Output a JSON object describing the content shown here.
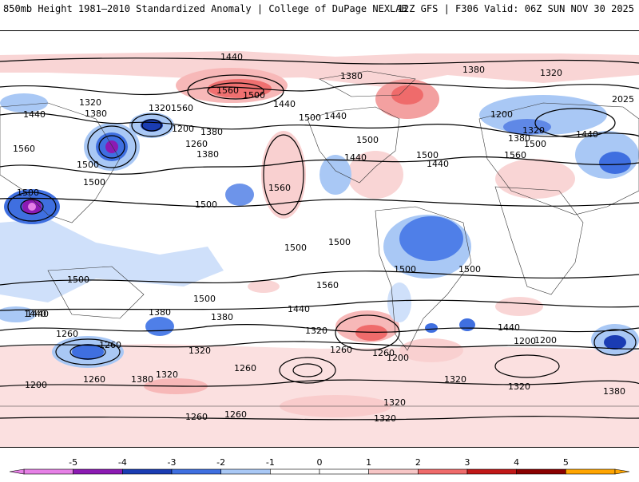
{
  "header": {
    "title_left": "850mb Height 1981–2010 Standardized Anomaly | College of DuPage NEXLAB",
    "title_right": "12Z GFS | F306 Valid: 06Z SUN NOV 30 2025"
  },
  "map": {
    "contour_labels": [
      {
        "text": "1440",
        "id": "c1"
      },
      {
        "text": "1560",
        "id": "c2"
      },
      {
        "text": "1500",
        "id": "c3"
      },
      {
        "text": "1440",
        "id": "c4"
      },
      {
        "text": "1380",
        "id": "c5"
      },
      {
        "text": "1380",
        "id": "c6"
      },
      {
        "text": "1320",
        "id": "c7"
      },
      {
        "text": "1320",
        "id": "c8"
      },
      {
        "text": "1440",
        "id": "c9"
      },
      {
        "text": "1380",
        "id": "c10"
      },
      {
        "text": "1560",
        "id": "c11"
      },
      {
        "text": "1500",
        "id": "c12"
      },
      {
        "text": "1320",
        "id": "c13"
      },
      {
        "text": "1380",
        "id": "c14"
      },
      {
        "text": "1200",
        "id": "c15"
      },
      {
        "text": "1260",
        "id": "c16"
      },
      {
        "text": "1380",
        "id": "c17"
      },
      {
        "text": "1440",
        "id": "c18"
      },
      {
        "text": "1500",
        "id": "c19"
      },
      {
        "text": "1560",
        "id": "c20"
      },
      {
        "text": "1500",
        "id": "c21"
      },
      {
        "text": "1440",
        "id": "c22"
      },
      {
        "text": "1440",
        "id": "c23"
      },
      {
        "text": "1500",
        "id": "c24"
      },
      {
        "text": "1200",
        "id": "c25"
      },
      {
        "text": "1320",
        "id": "c26"
      },
      {
        "text": "1380",
        "id": "c27"
      },
      {
        "text": "1500",
        "id": "c28"
      },
      {
        "text": "1440",
        "id": "c29"
      },
      {
        "text": "2025",
        "id": "c30"
      },
      {
        "text": "1560",
        "id": "c31"
      },
      {
        "text": "1500",
        "id": "c32"
      },
      {
        "text": "1500",
        "id": "c33"
      },
      {
        "text": "1560",
        "id": "c34"
      },
      {
        "text": "1500",
        "id": "c35"
      },
      {
        "text": "1500",
        "id": "c36"
      },
      {
        "text": "1500",
        "id": "c37"
      },
      {
        "text": "1500",
        "id": "c38"
      },
      {
        "text": "1500",
        "id": "c39"
      },
      {
        "text": "1560",
        "id": "c40"
      },
      {
        "text": "1500",
        "id": "c41"
      },
      {
        "text": "1500",
        "id": "c42"
      },
      {
        "text": "1440",
        "id": "c43"
      },
      {
        "text": "1380",
        "id": "c44"
      },
      {
        "text": "1440",
        "id": "c45"
      },
      {
        "text": "1380",
        "id": "c46"
      },
      {
        "text": "1440",
        "id": "c47"
      },
      {
        "text": "1320",
        "id": "c48"
      },
      {
        "text": "1260",
        "id": "c49"
      },
      {
        "text": "1200",
        "id": "c50"
      },
      {
        "text": "1260",
        "id": "c51"
      },
      {
        "text": "1200",
        "id": "c52"
      },
      {
        "text": "1260",
        "id": "c53"
      },
      {
        "text": "1320",
        "id": "c54"
      },
      {
        "text": "1380",
        "id": "c55"
      },
      {
        "text": "1260",
        "id": "c56"
      },
      {
        "text": "1200",
        "id": "c57"
      },
      {
        "text": "1320",
        "id": "c58"
      },
      {
        "text": "1320",
        "id": "c59"
      },
      {
        "text": "1320",
        "id": "c60"
      },
      {
        "text": "1260",
        "id": "c61"
      },
      {
        "text": "1380",
        "id": "c62"
      },
      {
        "text": "1320",
        "id": "c63"
      },
      {
        "text": "1260",
        "id": "c64"
      },
      {
        "text": "1320",
        "id": "c65"
      },
      {
        "text": "1200",
        "id": "c66"
      },
      {
        "text": "1260",
        "id": "c67"
      },
      {
        "text": "1440",
        "id": "c68"
      },
      {
        "text": "1260",
        "id": "c69"
      }
    ]
  },
  "colorbar": {
    "ticks": [
      "-5",
      "-4",
      "-3",
      "-2",
      "-1",
      "0",
      "1",
      "2",
      "3",
      "4",
      "5"
    ],
    "colors": [
      "#e680e6",
      "#8c1ab3",
      "#1a3cb3",
      "#3f6fe0",
      "#a9c8f5",
      "#ffffff",
      "#ffffff",
      "#f7c6c6",
      "#ef6b6b",
      "#c01818",
      "#8a0000",
      "#ffa500"
    ]
  }
}
